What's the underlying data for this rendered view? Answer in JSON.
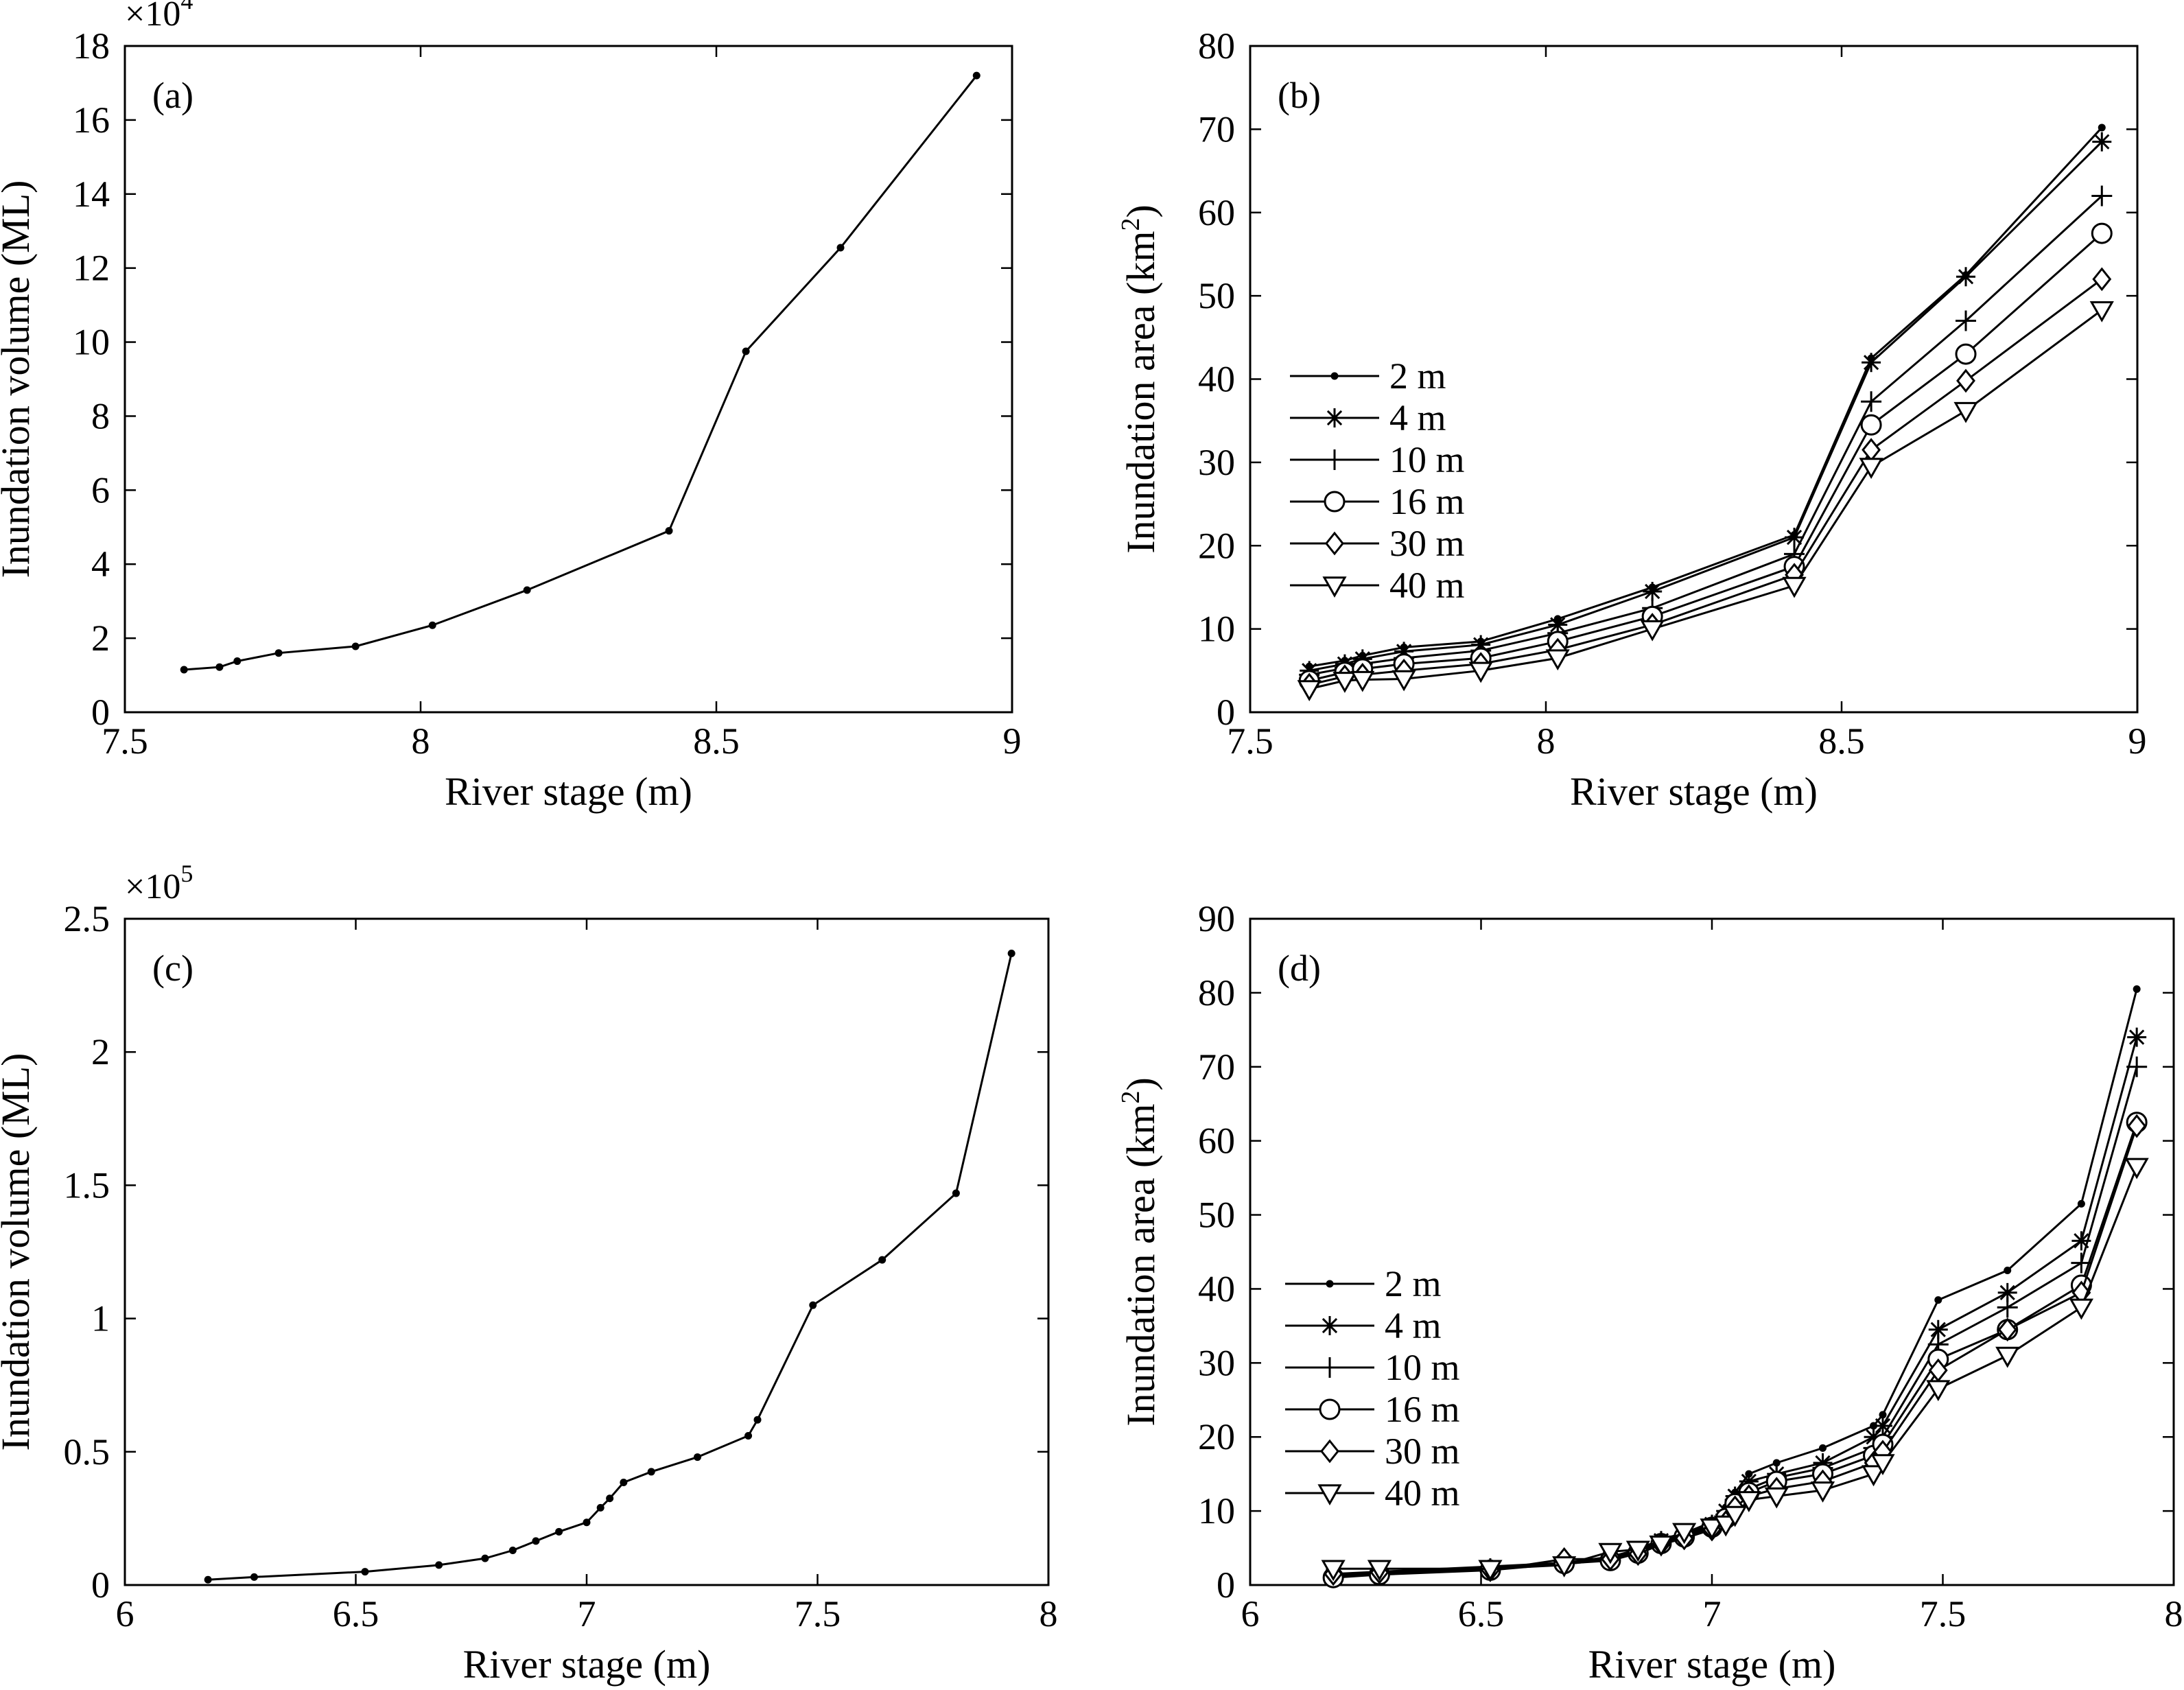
{
  "chart_data": [
    {
      "id": "a",
      "type": "line",
      "panel_label": "(a)",
      "xlabel": "River stage (m)",
      "ylabel": "Inundation volume (ML)",
      "xlim": [
        7.5,
        9
      ],
      "ylim": [
        0,
        18
      ],
      "xticks": [
        7.5,
        8,
        8.5,
        9
      ],
      "xtick_labels": [
        "7.5",
        "8",
        "8.5",
        "9"
      ],
      "yticks": [
        0,
        2,
        4,
        6,
        8,
        10,
        12,
        14,
        16,
        18
      ],
      "ytick_labels": [
        "0",
        "2",
        "4",
        "6",
        "8",
        "10",
        "12",
        "14",
        "16",
        "18"
      ],
      "y_exponent": {
        "base": "×10",
        "power": "4"
      },
      "series": [
        {
          "marker": "dot",
          "x": [
            7.6,
            7.66,
            7.69,
            7.76,
            7.89,
            8.02,
            8.18,
            8.42,
            8.55,
            8.71,
            8.94
          ],
          "y": [
            1.15,
            1.22,
            1.38,
            1.6,
            1.78,
            2.35,
            3.3,
            4.9,
            9.75,
            12.55,
            17.2
          ]
        }
      ]
    },
    {
      "id": "b",
      "type": "line",
      "panel_label": "(b)",
      "xlabel": "River stage (m)",
      "ylabel": "Inundation area (km",
      "ylabel_sup": "2",
      "ylabel_end": ")",
      "xlim": [
        7.5,
        9
      ],
      "ylim": [
        0,
        80
      ],
      "xticks": [
        7.5,
        8,
        8.5,
        9
      ],
      "xtick_labels": [
        "7.5",
        "8",
        "8.5",
        "9"
      ],
      "yticks": [
        0,
        10,
        20,
        30,
        40,
        50,
        60,
        70,
        80
      ],
      "ytick_labels": [
        "0",
        "10",
        "20",
        "30",
        "40",
        "50",
        "60",
        "70",
        "80"
      ],
      "x": [
        7.6,
        7.66,
        7.69,
        7.76,
        7.89,
        8.02,
        8.18,
        8.42,
        8.55,
        8.71,
        8.94
      ],
      "series": [
        {
          "name": "2 m",
          "marker": "dot",
          "values": [
            5.5,
            6.2,
            6.8,
            7.8,
            8.5,
            11.2,
            15.0,
            21.3,
            42.5,
            52.5,
            70.2
          ]
        },
        {
          "name": "4 m",
          "marker": "asterisk",
          "values": [
            5.0,
            5.8,
            6.4,
            7.3,
            8.1,
            10.5,
            14.5,
            21.0,
            42.0,
            52.3,
            68.5
          ]
        },
        {
          "name": "10 m",
          "marker": "plus",
          "values": [
            4.5,
            5.3,
            5.8,
            6.5,
            7.4,
            9.5,
            12.5,
            19.0,
            37.3,
            47.0,
            62.0
          ]
        },
        {
          "name": "16 m",
          "marker": "circle",
          "values": [
            3.8,
            4.8,
            5.2,
            5.8,
            6.5,
            8.5,
            11.5,
            17.5,
            34.5,
            43.0,
            57.5
          ]
        },
        {
          "name": "30 m",
          "marker": "diamond",
          "values": [
            3.3,
            4.3,
            4.5,
            5.0,
            5.8,
            7.5,
            10.5,
            16.5,
            31.5,
            39.8,
            52.0
          ]
        },
        {
          "name": "40 m",
          "marker": "triangle-down",
          "values": [
            2.8,
            3.8,
            3.9,
            4.0,
            5.0,
            6.5,
            10.0,
            15.2,
            29.5,
            36.2,
            48.3
          ]
        }
      ],
      "legend_position": "middle-left"
    },
    {
      "id": "c",
      "type": "line",
      "panel_label": "(c)",
      "xlabel": "River stage (m)",
      "ylabel": "Inundation volume (ML)",
      "xlim": [
        6,
        8
      ],
      "ylim": [
        0,
        2.5
      ],
      "xticks": [
        6,
        6.5,
        7,
        7.5,
        8
      ],
      "xtick_labels": [
        "6",
        "6.5",
        "7",
        "7.5",
        "8"
      ],
      "yticks": [
        0,
        0.5,
        1,
        1.5,
        2,
        2.5
      ],
      "ytick_labels": [
        "0",
        "0.5",
        "1",
        "1.5",
        "2",
        "2.5"
      ],
      "y_exponent": {
        "base": "×10",
        "power": "5"
      },
      "series": [
        {
          "marker": "dot",
          "x": [
            6.18,
            6.28,
            6.52,
            6.68,
            6.78,
            6.84,
            6.89,
            6.94,
            7.0,
            7.03,
            7.05,
            7.08,
            7.14,
            7.24,
            7.35,
            7.37,
            7.49,
            7.64,
            7.8,
            7.92
          ],
          "y": [
            0.02,
            0.03,
            0.05,
            0.075,
            0.1,
            0.13,
            0.165,
            0.2,
            0.235,
            0.29,
            0.325,
            0.385,
            0.425,
            0.48,
            0.56,
            0.62,
            1.05,
            1.22,
            1.47,
            2.37
          ]
        }
      ]
    },
    {
      "id": "d",
      "type": "line",
      "panel_label": "(d)",
      "xlabel": "River stage (m)",
      "ylabel": "Inundation area (km",
      "ylabel_sup": "2",
      "ylabel_end": ")",
      "xlim": [
        6,
        8
      ],
      "ylim": [
        0,
        90
      ],
      "xticks": [
        6,
        6.5,
        7,
        7.5,
        8
      ],
      "xtick_labels": [
        "6",
        "6.5",
        "7",
        "7.5",
        "8"
      ],
      "yticks": [
        0,
        10,
        20,
        30,
        40,
        50,
        60,
        70,
        80,
        90
      ],
      "ytick_labels": [
        "0",
        "10",
        "20",
        "30",
        "40",
        "50",
        "60",
        "70",
        "80",
        "90"
      ],
      "x": [
        6.18,
        6.28,
        6.52,
        6.68,
        6.78,
        6.84,
        6.89,
        6.94,
        7.0,
        7.03,
        7.05,
        7.08,
        7.14,
        7.24,
        7.35,
        7.37,
        7.49,
        7.64,
        7.8,
        7.92
      ],
      "series": [
        {
          "name": "2 m",
          "marker": "dot",
          "values": [
            1.5,
            1.8,
            2.5,
            3.0,
            3.8,
            4.8,
            6.2,
            7.0,
            8.5,
            10.5,
            12.5,
            15.0,
            16.5,
            18.5,
            21.5,
            23.0,
            38.5,
            42.5,
            51.5,
            80.5
          ]
        },
        {
          "name": "4 m",
          "marker": "asterisk",
          "values": [
            1.3,
            1.6,
            2.3,
            2.9,
            3.6,
            4.6,
            6.0,
            6.8,
            8.2,
            10.0,
            12.0,
            14.0,
            15.0,
            16.5,
            20.0,
            21.5,
            34.5,
            39.5,
            46.5,
            74.0
          ]
        },
        {
          "name": "10 m",
          "marker": "plus",
          "values": [
            1.2,
            1.5,
            2.2,
            2.8,
            3.5,
            4.5,
            5.8,
            6.7,
            8.0,
            9.5,
            11.5,
            13.0,
            14.5,
            15.8,
            18.5,
            20.0,
            32.5,
            37.5,
            43.5,
            70.0
          ]
        },
        {
          "name": "16 m",
          "marker": "circle",
          "values": [
            1.0,
            1.4,
            2.0,
            2.9,
            3.3,
            4.3,
            5.6,
            6.5,
            7.8,
            9.0,
            11.0,
            12.5,
            14.0,
            15.0,
            17.5,
            19.0,
            30.5,
            34.5,
            40.5,
            62.5
          ]
        },
        {
          "name": "30 m",
          "marker": "diamond",
          "values": [
            1.5,
            1.7,
            2.0,
            3.5,
            3.5,
            4.2,
            5.5,
            6.3,
            7.5,
            8.5,
            10.5,
            12.0,
            13.0,
            14.0,
            16.5,
            18.0,
            29.0,
            34.5,
            39.5,
            62.0
          ]
        },
        {
          "name": "40 m",
          "marker": "triangle-down",
          "values": [
            2.2,
            2.2,
            2.2,
            2.7,
            4.5,
            4.8,
            5.5,
            7.2,
            7.8,
            8.2,
            9.5,
            11.5,
            12.0,
            12.8,
            15.0,
            16.5,
            26.5,
            31.0,
            37.5,
            56.5
          ]
        }
      ],
      "legend_position": "middle-left"
    }
  ]
}
